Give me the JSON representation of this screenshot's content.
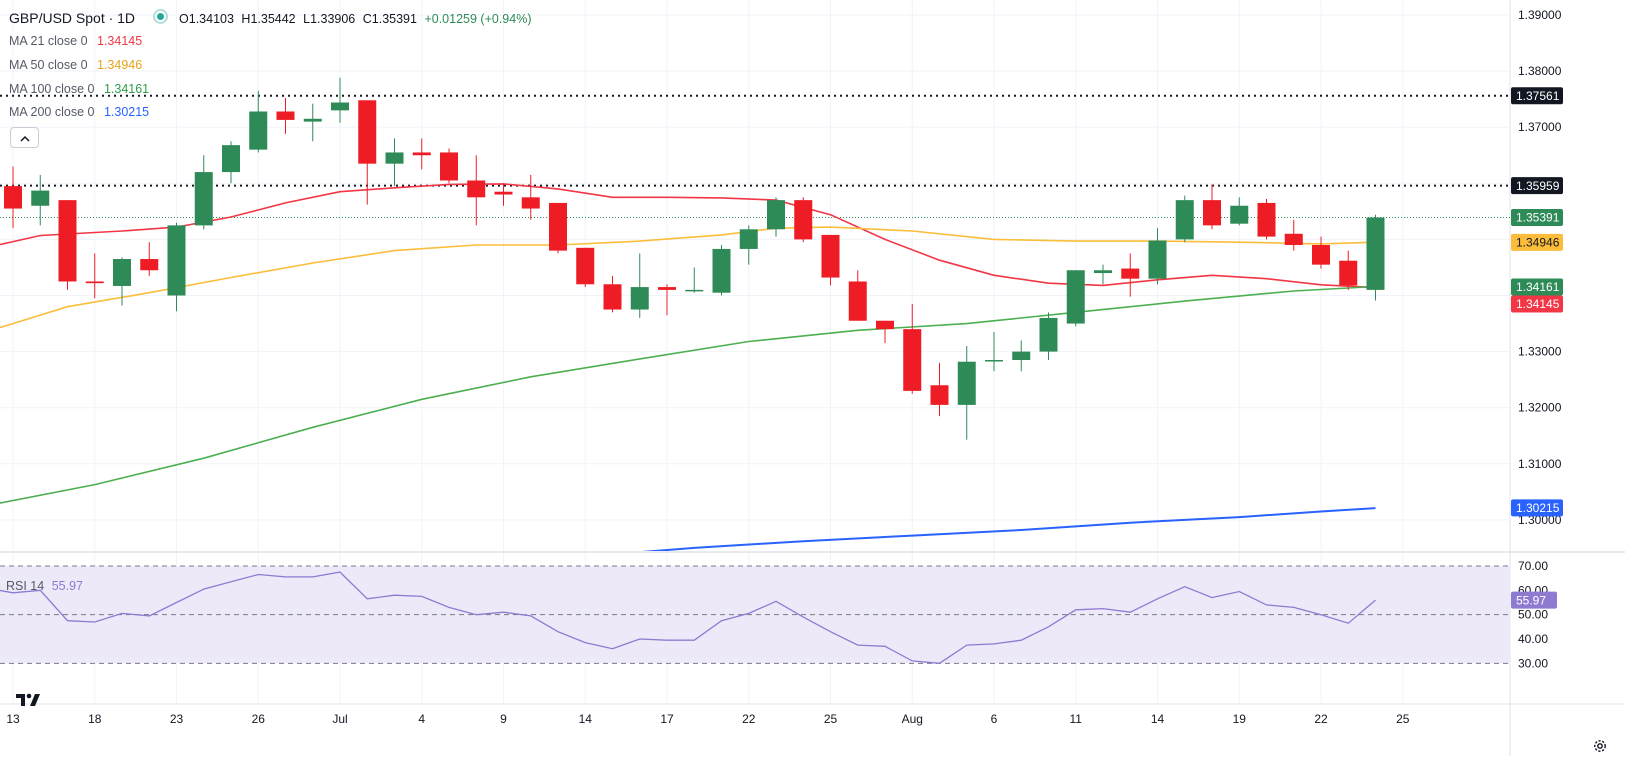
{
  "header": {
    "symbol": "GBP/USD Spot · 1D",
    "open": "O1.34103",
    "high": "H1.35442",
    "low": "L1.33906",
    "close": "C1.35391",
    "change": "+0.01259 (+0.94%)",
    "status_color": "#26a69a"
  },
  "indicators": [
    {
      "label": "MA 21 close 0",
      "value": "1.34145",
      "color": "#f23645"
    },
    {
      "label": "MA 50 close 0",
      "value": "1.34946",
      "color": "#fbbd3a"
    },
    {
      "label": "MA 100 close 0",
      "value": "1.34161",
      "color": "#4caf50"
    },
    {
      "label": "MA 200 close 0",
      "value": "1.30215",
      "color": "#2962ff"
    }
  ],
  "rsi": {
    "label": "RSI 14",
    "value": "55.97"
  },
  "colors": {
    "up": "#2e8b57",
    "down": "#ee1c25",
    "rsi_line": "#8f7ad1",
    "rsi_band": "#ede9f9",
    "current_price_line": "#2e8b57"
  },
  "chart_data": {
    "type": "candlestick",
    "title": "GBP/USD Spot · 1D",
    "y_axis": {
      "range": [
        1.295,
        1.392
      ],
      "ticks": [
        "1.39000",
        "1.38000",
        "1.37000",
        "1.36000",
        "1.35000",
        "1.34000",
        "1.33000",
        "1.32000",
        "1.31000",
        "1.30000"
      ],
      "tick_values": [
        1.39,
        1.38,
        1.37,
        1.36,
        1.35,
        1.34,
        1.33,
        1.32,
        1.31,
        1.3
      ]
    },
    "x_axis": {
      "tick_labels": [
        "13",
        "18",
        "23",
        "26",
        "Jul",
        "4",
        "9",
        "14",
        "17",
        "22",
        "25",
        "Aug",
        "6",
        "11",
        "14",
        "19",
        "22",
        "25"
      ],
      "tick_indices": [
        0,
        3,
        6,
        9,
        12,
        15,
        18,
        21,
        24,
        27,
        30,
        33,
        36,
        39,
        42,
        45,
        48,
        51
      ]
    },
    "candles": [
      {
        "o": 1.3595,
        "h": 1.363,
        "l": 1.352,
        "c": 1.3555
      },
      {
        "o": 1.356,
        "h": 1.3615,
        "l": 1.3525,
        "c": 1.3587
      },
      {
        "o": 1.357,
        "h": 1.357,
        "l": 1.341,
        "c": 1.3425
      },
      {
        "o": 1.3425,
        "h": 1.3475,
        "l": 1.3395,
        "c": 1.3422
      },
      {
        "o": 1.3417,
        "h": 1.3468,
        "l": 1.3382,
        "c": 1.3465
      },
      {
        "o": 1.3465,
        "h": 1.3495,
        "l": 1.3435,
        "c": 1.3445
      },
      {
        "o": 1.34,
        "h": 1.353,
        "l": 1.3372,
        "c": 1.3525
      },
      {
        "o": 1.3525,
        "h": 1.365,
        "l": 1.3518,
        "c": 1.362
      },
      {
        "o": 1.362,
        "h": 1.3675,
        "l": 1.36,
        "c": 1.3668
      },
      {
        "o": 1.366,
        "h": 1.3765,
        "l": 1.3655,
        "c": 1.3728
      },
      {
        "o": 1.3728,
        "h": 1.3752,
        "l": 1.3688,
        "c": 1.3713
      },
      {
        "o": 1.371,
        "h": 1.3742,
        "l": 1.3675,
        "c": 1.3715
      },
      {
        "o": 1.373,
        "h": 1.3788,
        "l": 1.3708,
        "c": 1.3744
      },
      {
        "o": 1.3748,
        "h": 1.3748,
        "l": 1.3562,
        "c": 1.3635
      },
      {
        "o": 1.3635,
        "h": 1.368,
        "l": 1.3595,
        "c": 1.3655
      },
      {
        "o": 1.3655,
        "h": 1.368,
        "l": 1.3625,
        "c": 1.365
      },
      {
        "o": 1.3655,
        "h": 1.3662,
        "l": 1.36,
        "c": 1.3605
      },
      {
        "o": 1.3605,
        "h": 1.365,
        "l": 1.3525,
        "c": 1.3575
      },
      {
        "o": 1.3585,
        "h": 1.36,
        "l": 1.356,
        "c": 1.358
      },
      {
        "o": 1.3575,
        "h": 1.3615,
        "l": 1.3535,
        "c": 1.3555
      },
      {
        "o": 1.3565,
        "h": 1.3565,
        "l": 1.3475,
        "c": 1.348
      },
      {
        "o": 1.3485,
        "h": 1.3485,
        "l": 1.3415,
        "c": 1.342
      },
      {
        "o": 1.342,
        "h": 1.3435,
        "l": 1.337,
        "c": 1.3375
      },
      {
        "o": 1.3375,
        "h": 1.3475,
        "l": 1.336,
        "c": 1.3415
      },
      {
        "o": 1.3415,
        "h": 1.342,
        "l": 1.3365,
        "c": 1.341
      },
      {
        "o": 1.341,
        "h": 1.345,
        "l": 1.3405,
        "c": 1.341
      },
      {
        "o": 1.3405,
        "h": 1.349,
        "l": 1.34,
        "c": 1.3483
      },
      {
        "o": 1.3483,
        "h": 1.3525,
        "l": 1.3455,
        "c": 1.3518
      },
      {
        "o": 1.3518,
        "h": 1.3575,
        "l": 1.3505,
        "c": 1.357
      },
      {
        "o": 1.357,
        "h": 1.3575,
        "l": 1.3495,
        "c": 1.35
      },
      {
        "o": 1.3508,
        "h": 1.3508,
        "l": 1.3418,
        "c": 1.3432
      },
      {
        "o": 1.3425,
        "h": 1.3445,
        "l": 1.3355,
        "c": 1.3355
      },
      {
        "o": 1.3355,
        "h": 1.3355,
        "l": 1.3315,
        "c": 1.334
      },
      {
        "o": 1.334,
        "h": 1.3385,
        "l": 1.3225,
        "c": 1.323
      },
      {
        "o": 1.324,
        "h": 1.328,
        "l": 1.3185,
        "c": 1.3205
      },
      {
        "o": 1.3205,
        "h": 1.331,
        "l": 1.3143,
        "c": 1.3282
      },
      {
        "o": 1.3285,
        "h": 1.3335,
        "l": 1.3265,
        "c": 1.3285
      },
      {
        "o": 1.3285,
        "h": 1.332,
        "l": 1.3265,
        "c": 1.33
      },
      {
        "o": 1.33,
        "h": 1.337,
        "l": 1.3285,
        "c": 1.336
      },
      {
        "o": 1.335,
        "h": 1.3445,
        "l": 1.3345,
        "c": 1.3445
      },
      {
        "o": 1.344,
        "h": 1.3455,
        "l": 1.342,
        "c": 1.3445
      },
      {
        "o": 1.3448,
        "h": 1.3475,
        "l": 1.3398,
        "c": 1.343
      },
      {
        "o": 1.343,
        "h": 1.352,
        "l": 1.342,
        "c": 1.3498
      },
      {
        "o": 1.35,
        "h": 1.3578,
        "l": 1.3495,
        "c": 1.357
      },
      {
        "o": 1.357,
        "h": 1.3598,
        "l": 1.3518,
        "c": 1.3525
      },
      {
        "o": 1.3528,
        "h": 1.3575,
        "l": 1.3525,
        "c": 1.356
      },
      {
        "o": 1.3565,
        "h": 1.3572,
        "l": 1.35,
        "c": 1.3505
      },
      {
        "o": 1.351,
        "h": 1.3535,
        "l": 1.348,
        "c": 1.349
      },
      {
        "o": 1.349,
        "h": 1.3505,
        "l": 1.3448,
        "c": 1.3455
      },
      {
        "o": 1.3462,
        "h": 1.348,
        "l": 1.341,
        "c": 1.3418
      },
      {
        "o": 1.341,
        "h": 1.3544,
        "l": 1.3391,
        "c": 1.3539
      }
    ],
    "moving_averages": {
      "ma21": [
        [
          -1,
          1.3485
        ],
        [
          1,
          1.3507
        ],
        [
          4,
          1.3515
        ],
        [
          6,
          1.3522
        ],
        [
          8,
          1.354
        ],
        [
          10,
          1.3565
        ],
        [
          12,
          1.3585
        ],
        [
          14,
          1.3592
        ],
        [
          16,
          1.3598
        ],
        [
          18,
          1.3599
        ],
        [
          20,
          1.359
        ],
        [
          22,
          1.3575
        ],
        [
          24,
          1.3575
        ],
        [
          26,
          1.3574
        ],
        [
          28,
          1.357
        ],
        [
          30,
          1.3544
        ],
        [
          32,
          1.35
        ],
        [
          34,
          1.3463
        ],
        [
          36,
          1.3436
        ],
        [
          38,
          1.3422
        ],
        [
          40,
          1.3418
        ],
        [
          42,
          1.3428
        ],
        [
          44,
          1.3436
        ],
        [
          46,
          1.343
        ],
        [
          48,
          1.3419
        ],
        [
          50,
          1.3414
        ]
      ],
      "ma50": [
        [
          -1,
          1.3335
        ],
        [
          2,
          1.338
        ],
        [
          5,
          1.3405
        ],
        [
          8,
          1.3432
        ],
        [
          11,
          1.3458
        ],
        [
          14,
          1.348
        ],
        [
          17,
          1.349
        ],
        [
          20,
          1.349
        ],
        [
          23,
          1.3497
        ],
        [
          26,
          1.3508
        ],
        [
          28,
          1.352
        ],
        [
          30,
          1.3522
        ],
        [
          33,
          1.3515
        ],
        [
          36,
          1.35
        ],
        [
          39,
          1.3497
        ],
        [
          42,
          1.3497
        ],
        [
          45,
          1.3495
        ],
        [
          48,
          1.3492
        ],
        [
          50,
          1.3495
        ]
      ],
      "ma100": [
        [
          -1,
          1.3025
        ],
        [
          3,
          1.3063
        ],
        [
          7,
          1.311
        ],
        [
          11,
          1.3165
        ],
        [
          15,
          1.3215
        ],
        [
          19,
          1.3255
        ],
        [
          23,
          1.3287
        ],
        [
          27,
          1.3318
        ],
        [
          31,
          1.3338
        ],
        [
          35,
          1.335
        ],
        [
          39,
          1.337
        ],
        [
          43,
          1.339
        ],
        [
          47,
          1.3408
        ],
        [
          50,
          1.3416
        ]
      ],
      "ma200": [
        [
          21,
          1.2935
        ],
        [
          25,
          1.295
        ],
        [
          29,
          1.2962
        ],
        [
          33,
          1.2972
        ],
        [
          37,
          1.2982
        ],
        [
          41,
          1.2995
        ],
        [
          45,
          1.3005
        ],
        [
          48,
          1.3015
        ],
        [
          50,
          1.3021
        ]
      ]
    },
    "rsi_14": {
      "range": [
        28,
        73
      ],
      "ticks": [
        "70.00",
        "60.00",
        "50.00",
        "40.00",
        "30.00"
      ],
      "tick_values": [
        70,
        60,
        50,
        40,
        30
      ],
      "levels": [
        70,
        50,
        30
      ],
      "values": [
        [
          -1,
          61
        ],
        [
          0,
          59
        ],
        [
          1,
          60
        ],
        [
          2,
          47.5
        ],
        [
          3,
          47
        ],
        [
          4,
          50.5
        ],
        [
          5,
          49.5
        ],
        [
          6,
          55
        ],
        [
          7,
          60.5
        ],
        [
          8,
          63.5
        ],
        [
          9,
          66.5
        ],
        [
          10,
          65.5
        ],
        [
          11,
          65.5
        ],
        [
          12,
          67.5
        ],
        [
          13,
          56.5
        ],
        [
          14,
          58
        ],
        [
          15,
          57.5
        ],
        [
          16,
          53
        ],
        [
          17,
          50
        ],
        [
          18,
          51
        ],
        [
          19,
          49.5
        ],
        [
          20,
          43
        ],
        [
          21,
          38.5
        ],
        [
          22,
          36
        ],
        [
          23,
          40
        ],
        [
          24,
          39.5
        ],
        [
          25,
          39.5
        ],
        [
          26,
          47.5
        ],
        [
          27,
          50.5
        ],
        [
          28,
          55.5
        ],
        [
          29,
          49
        ],
        [
          30,
          43
        ],
        [
          31,
          37.5
        ],
        [
          32,
          37
        ],
        [
          33,
          31
        ],
        [
          34,
          30
        ],
        [
          35,
          37.5
        ],
        [
          36,
          38
        ],
        [
          37,
          39.5
        ],
        [
          38,
          45
        ],
        [
          39,
          52
        ],
        [
          40,
          52.5
        ],
        [
          41,
          51
        ],
        [
          42,
          56.5
        ],
        [
          43,
          61.5
        ],
        [
          44,
          57
        ],
        [
          45,
          59.5
        ],
        [
          46,
          54
        ],
        [
          47,
          53
        ],
        [
          48,
          50
        ],
        [
          49,
          46.5
        ],
        [
          50,
          55.97
        ]
      ]
    },
    "price_levels": [
      {
        "label": "1.37561",
        "value": 1.37561
      },
      {
        "label": "1.35959",
        "value": 1.35959
      }
    ],
    "price_labels": [
      {
        "text": "1.37561",
        "value": 1.37561,
        "bg": "#131722",
        "fg": "#ffffff"
      },
      {
        "text": "1.35959",
        "value": 1.35959,
        "bg": "#131722",
        "fg": "#ffffff"
      },
      {
        "text": "1.35391",
        "value": 1.35391,
        "bg": "#2e8b57",
        "fg": "#ffffff"
      },
      {
        "text": "1.34946",
        "value": 1.34946,
        "bg": "#fbbd3a",
        "fg": "#131722"
      },
      {
        "text": "1.34161",
        "value": 1.34161,
        "bg": "#2e8b57",
        "fg": "#ffffff",
        "row": "a"
      },
      {
        "text": "1.34145",
        "value": 1.34145,
        "bg": "#f23645",
        "fg": "#ffffff",
        "row": "b"
      },
      {
        "text": "1.30215",
        "value": 1.30215,
        "bg": "#2962ff",
        "fg": "#ffffff"
      }
    ],
    "rsi_label": {
      "text": "55.97",
      "value": 55.97,
      "bg": "#8f7ad1",
      "fg": "#ffffff"
    }
  }
}
